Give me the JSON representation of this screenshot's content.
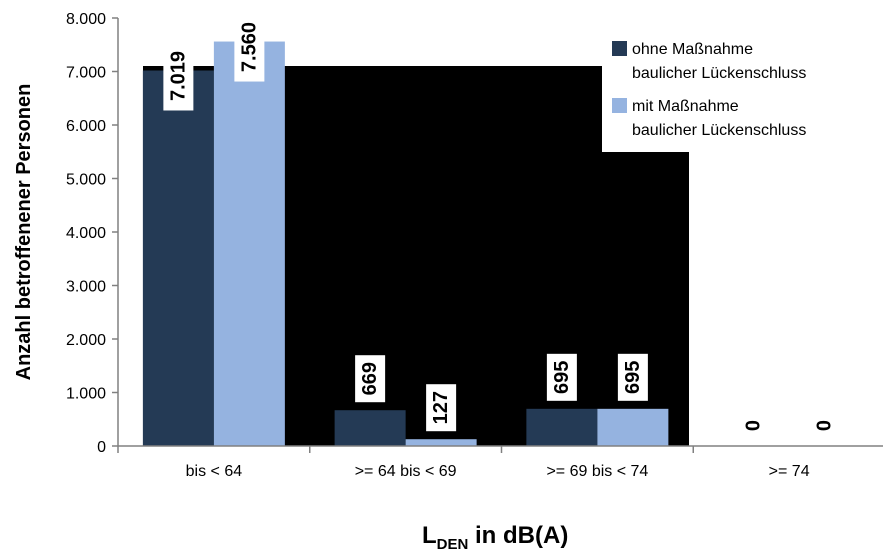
{
  "chart_data": {
    "type": "bar",
    "categories": [
      "bis < 64",
      ">= 64 bis < 69",
      ">= 69 bis < 74",
      ">= 74"
    ],
    "series": [
      {
        "name": "ohne Maßnahme baulicher Lückenschluss",
        "values": [
          7019,
          669,
          695,
          0
        ],
        "labels": [
          "7.019",
          "669",
          "695",
          "0"
        ],
        "color": "#243a55"
      },
      {
        "name": "mit Maßnahme baulicher Lückenschluss",
        "values": [
          7560,
          127,
          695,
          0
        ],
        "labels": [
          "7.560",
          "127",
          "695",
          "0"
        ],
        "color": "#95b3e0"
      }
    ],
    "legend": [
      {
        "line1": "ohne Maßnahme",
        "line2": "baulicher Lückenschluss"
      },
      {
        "line1": "mit Maßnahme",
        "line2": "baulicher Lückenschluss"
      }
    ],
    "title": "",
    "xlabel_main": "L",
    "xlabel_sub": "DEN",
    "xlabel_rest": " in dB(A)",
    "ylabel": "Anzahl betroffenener Personen",
    "ylim": [
      0,
      8000
    ],
    "yticks": [
      0,
      1000,
      2000,
      3000,
      4000,
      5000,
      6000,
      7000,
      8000
    ],
    "ytick_labels": [
      "0",
      "1.000",
      "2.000",
      "3.000",
      "4.000",
      "5.000",
      "6.000",
      "7.000",
      "8.000"
    ],
    "legend_position": "top-right",
    "grid": false,
    "plot_background": "#000000"
  }
}
